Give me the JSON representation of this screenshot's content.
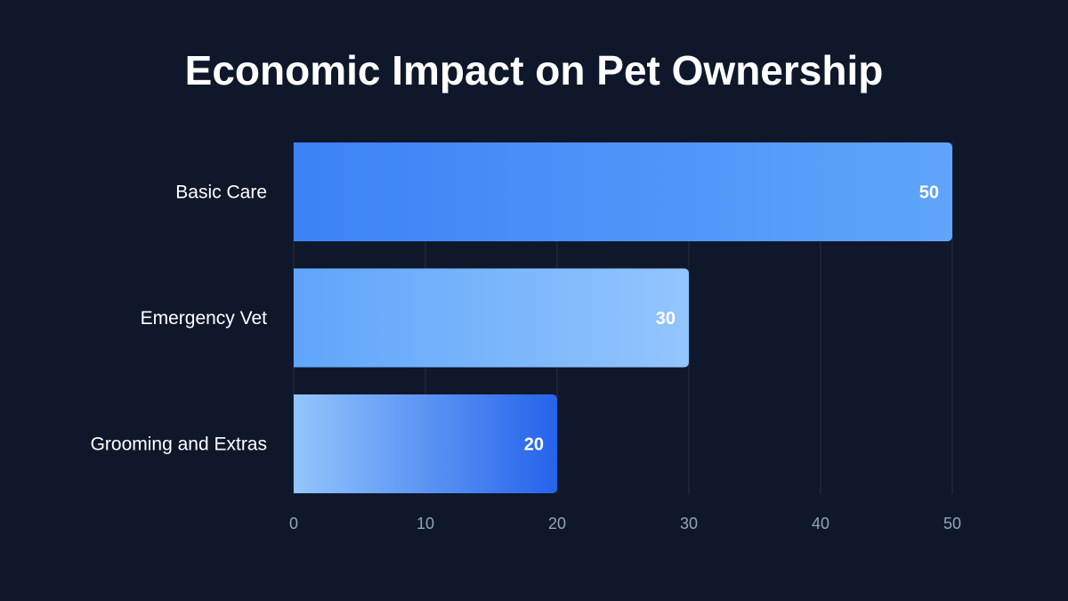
{
  "chart_data": {
    "type": "bar",
    "orientation": "horizontal",
    "title": "Economic Impact on Pet Ownership",
    "categories": [
      "Basic Care",
      "Emergency Vet",
      "Grooming and Extras"
    ],
    "values": [
      50,
      30,
      20
    ],
    "xlim": [
      0,
      50
    ],
    "xticks": [
      0,
      10,
      20,
      30,
      40,
      50
    ],
    "grid": true,
    "data_labels": true,
    "colors": {
      "background": "#0f172a",
      "grid": "#1e293b",
      "tick_text": "#94a3b8",
      "bar_gradients": [
        [
          "#3b82f6",
          "#60a5fa"
        ],
        [
          "#60a5fa",
          "#93c5fd"
        ],
        [
          "#93c5fd",
          "#2563eb"
        ]
      ]
    }
  }
}
